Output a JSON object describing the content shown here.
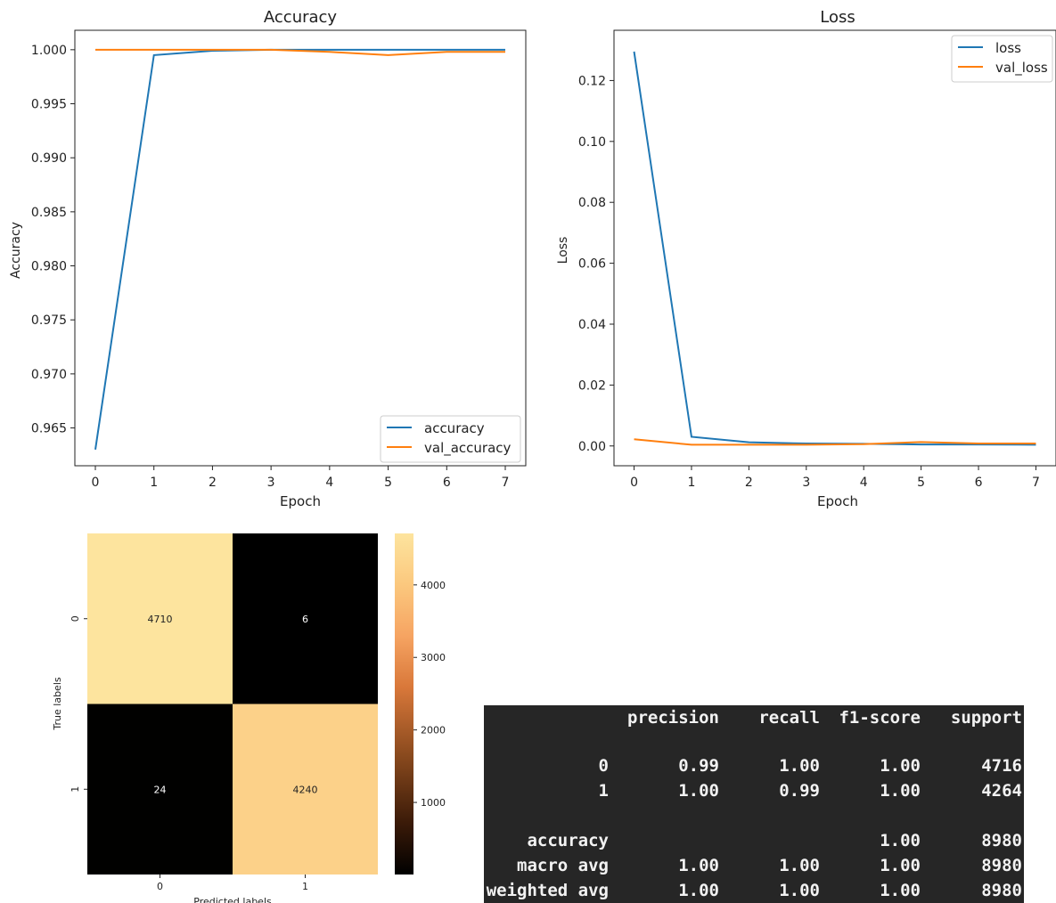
{
  "chart_data": [
    {
      "type": "line",
      "title": "Accuracy",
      "xlabel": "Epoch",
      "ylabel": "Accuracy",
      "x": [
        0,
        1,
        2,
        3,
        4,
        5,
        6,
        7
      ],
      "xticks": [
        "0",
        "1",
        "2",
        "3",
        "4",
        "5",
        "6",
        "7"
      ],
      "yticks": [
        "0.965",
        "0.970",
        "0.975",
        "0.980",
        "0.985",
        "0.990",
        "0.995",
        "1.000"
      ],
      "ylim": [
        0.9615,
        1.0018
      ],
      "legend_position": "lower-right",
      "series": [
        {
          "name": "accuracy",
          "color": "#1f77b4",
          "values": [
            0.963,
            0.9995,
            0.9999,
            1.0,
            1.0,
            1.0,
            1.0,
            1.0
          ]
        },
        {
          "name": "val_accuracy",
          "color": "#ff7f0e",
          "values": [
            1.0,
            1.0,
            1.0,
            1.0,
            0.9998,
            0.9995,
            0.9998,
            0.9998
          ]
        }
      ]
    },
    {
      "type": "line",
      "title": "Loss",
      "xlabel": "Epoch",
      "ylabel": "Loss",
      "x": [
        0,
        1,
        2,
        3,
        4,
        5,
        6,
        7
      ],
      "xticks": [
        "0",
        "1",
        "2",
        "3",
        "4",
        "5",
        "6",
        "7"
      ],
      "yticks": [
        "0.00",
        "0.02",
        "0.04",
        "0.06",
        "0.08",
        "0.10",
        "0.12"
      ],
      "ylim": [
        -0.0065,
        0.1365
      ],
      "legend_position": "upper-right",
      "series": [
        {
          "name": "loss",
          "color": "#1f77b4",
          "values": [
            0.1295,
            0.003,
            0.0012,
            0.0008,
            0.0007,
            0.0005,
            0.0005,
            0.0004
          ]
        },
        {
          "name": "val_loss",
          "color": "#ff7f0e",
          "values": [
            0.0022,
            0.0004,
            0.0004,
            0.0004,
            0.0006,
            0.0013,
            0.0008,
            0.0008
          ]
        }
      ]
    },
    {
      "type": "heatmap",
      "xlabel": "Predicted labels",
      "ylabel": "True labels",
      "x_categories": [
        "0",
        "1"
      ],
      "y_categories": [
        "0",
        "1"
      ],
      "values": [
        [
          4710,
          6
        ],
        [
          24,
          4240
        ]
      ],
      "colorbar_ticks": [
        "1000",
        "2000",
        "3000",
        "4000"
      ],
      "colorbar_range": [
        6,
        4710
      ],
      "colormap": [
        "#000000",
        "#3a1a08",
        "#8a4a1e",
        "#d9783a",
        "#f6a462",
        "#fbc87e",
        "#fde49e"
      ]
    },
    {
      "type": "table",
      "headers": [
        "",
        "precision",
        "recall",
        "f1-score",
        "support"
      ],
      "rows": [
        [
          "0",
          "0.99",
          "1.00",
          "1.00",
          "4716"
        ],
        [
          "1",
          "1.00",
          "0.99",
          "1.00",
          "4264"
        ],
        [
          "accuracy",
          "",
          "",
          "1.00",
          "8980"
        ],
        [
          "macro avg",
          "1.00",
          "1.00",
          "1.00",
          "8980"
        ],
        [
          "weighted avg",
          "1.00",
          "1.00",
          "1.00",
          "8980"
        ]
      ],
      "background": "#262626",
      "text_color": "#f2f2f2"
    }
  ]
}
